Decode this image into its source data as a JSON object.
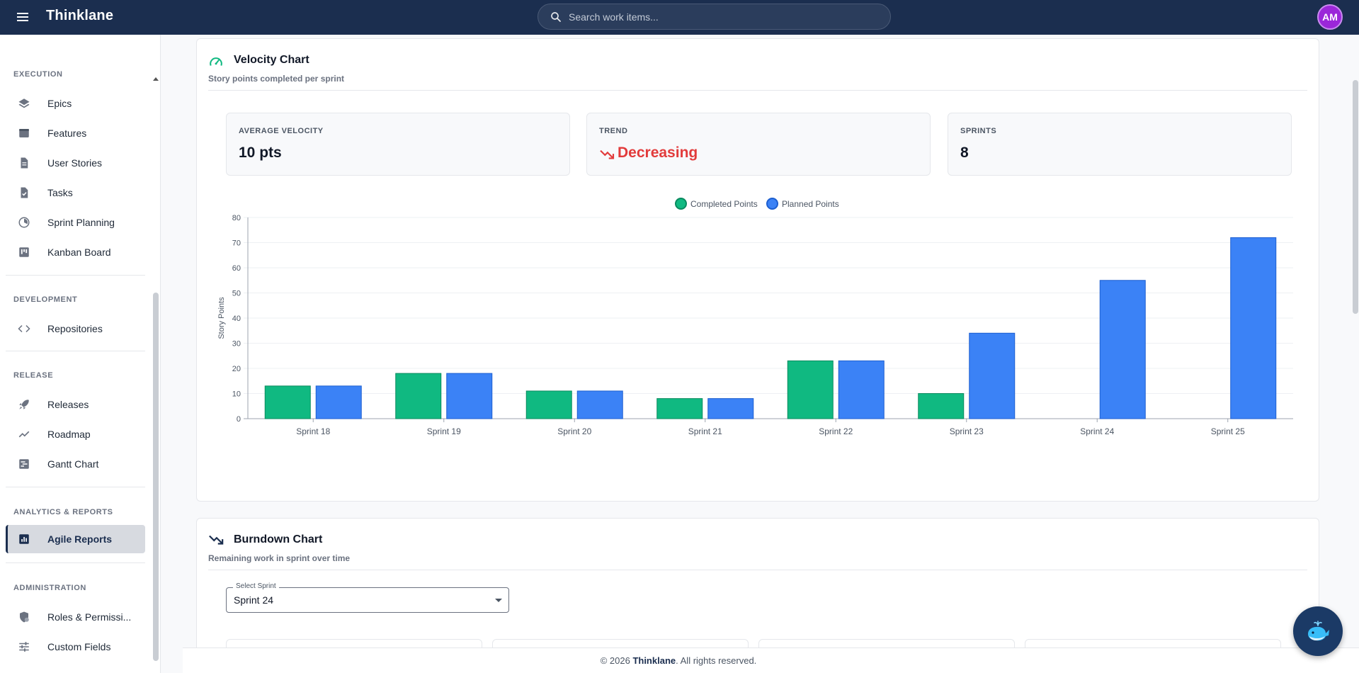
{
  "app": {
    "title": "Thinklane",
    "avatar_initials": "AM"
  },
  "search": {
    "placeholder": "Search work items..."
  },
  "sidebar": {
    "sections": [
      {
        "label": "EXECUTION",
        "items": [
          {
            "label": "Epics",
            "icon": "layers-icon"
          },
          {
            "label": "Features",
            "icon": "feature-icon"
          },
          {
            "label": "User Stories",
            "icon": "document-icon"
          },
          {
            "label": "Tasks",
            "icon": "task-icon"
          },
          {
            "label": "Sprint Planning",
            "icon": "sprint-icon"
          },
          {
            "label": "Kanban Board",
            "icon": "kanban-icon"
          }
        ]
      },
      {
        "label": "DEVELOPMENT",
        "items": [
          {
            "label": "Repositories",
            "icon": "code-icon"
          }
        ]
      },
      {
        "label": "RELEASE",
        "items": [
          {
            "label": "Releases",
            "icon": "rocket-icon"
          },
          {
            "label": "Roadmap",
            "icon": "trend-line-icon"
          },
          {
            "label": "Gantt Chart",
            "icon": "gantt-icon"
          }
        ]
      },
      {
        "label": "ANALYTICS & REPORTS",
        "items": [
          {
            "label": "Agile Reports",
            "icon": "bar-chart-icon",
            "active": true
          }
        ]
      },
      {
        "label": "ADMINISTRATION",
        "items": [
          {
            "label": "Roles & Permissi...",
            "icon": "shield-icon"
          },
          {
            "label": "Custom Fields",
            "icon": "sliders-icon"
          }
        ]
      }
    ]
  },
  "velocity": {
    "title": "Velocity Chart",
    "subtitle": "Story points completed per sprint",
    "stats": {
      "avg_label": "AVERAGE VELOCITY",
      "avg_value": "10 pts",
      "trend_label": "TREND",
      "trend_value": "Decreasing",
      "sprints_label": "SPRINTS",
      "sprints_value": "8"
    }
  },
  "burndown": {
    "title": "Burndown Chart",
    "subtitle": "Remaining work in sprint over time",
    "select_label": "Select Sprint",
    "select_value": "Sprint 24"
  },
  "footer": {
    "prefix": "© 2026 ",
    "brand": "Thinklane",
    "suffix": ". All rights reserved."
  },
  "colors": {
    "completed": "#10b981",
    "planned": "#3b82f6",
    "topbar": "#1b2e4f",
    "trend_down": "#e23b3b"
  },
  "chart_data": {
    "type": "bar",
    "categories": [
      "Sprint 18",
      "Sprint 19",
      "Sprint 20",
      "Sprint 21",
      "Sprint 22",
      "Sprint 23",
      "Sprint 24",
      "Sprint 25"
    ],
    "series": [
      {
        "name": "Completed Points",
        "values": [
          13,
          18,
          11,
          8,
          23,
          10,
          0,
          0
        ]
      },
      {
        "name": "Planned Points",
        "values": [
          13,
          18,
          11,
          8,
          23,
          34,
          55,
          72
        ]
      }
    ],
    "ylabel": "Story Points",
    "ylim": [
      0,
      80
    ],
    "yticks": [
      0,
      10,
      20,
      30,
      40,
      50,
      60,
      70,
      80
    ],
    "legend": "top-center",
    "grid": true
  }
}
